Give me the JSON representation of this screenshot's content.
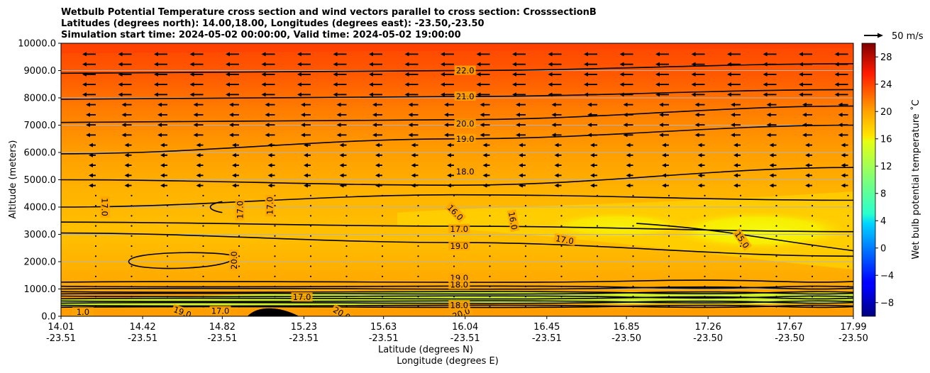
{
  "chart_data": {
    "type": "contour",
    "title_lines": [
      "Wetbulb Potential Temperature cross section and wind vectors parallel to cross section: CrosssectionB",
      "Latitudes (degrees north): 14.00,18.00, Longitudes (degrees east): -23.50,-23.50",
      "Simulation start time: 2024-05-02 00:00:00, Valid time: 2024-05-02 19:00:00"
    ],
    "xlabel": "Latitude (degrees N)",
    "xlabel2": "Longitude (degrees E)",
    "ylabel": "Altitude (meters)",
    "ylim": [
      0,
      10000
    ],
    "y_ticks": [
      "0.0",
      "1000.0",
      "2000.0",
      "3000.0",
      "4000.0",
      "5000.0",
      "6000.0",
      "7000.0",
      "8000.0",
      "9000.0",
      "10000.0"
    ],
    "x_ticks": [
      {
        "lat": "14.01",
        "lon": "-23.51"
      },
      {
        "lat": "14.42",
        "lon": "-23.51"
      },
      {
        "lat": "14.82",
        "lon": "-23.51"
      },
      {
        "lat": "15.23",
        "lon": "-23.51"
      },
      {
        "lat": "15.63",
        "lon": "-23.51"
      },
      {
        "lat": "16.04",
        "lon": "-23.51"
      },
      {
        "lat": "16.45",
        "lon": "-23.51"
      },
      {
        "lat": "16.85",
        "lon": "-23.50"
      },
      {
        "lat": "17.26",
        "lon": "-23.50"
      },
      {
        "lat": "17.67",
        "lon": "-23.50"
      },
      {
        "lat": "17.99",
        "lon": "-23.50"
      }
    ],
    "colorbar": {
      "label": "Wet bulb potential temperature ˚C",
      "range": [
        -10,
        30
      ],
      "ticks": [
        "-8",
        "-4",
        "0",
        "4",
        "8",
        "12",
        "16",
        "20",
        "24",
        "28"
      ],
      "colormap": "jet"
    },
    "quiver_key": {
      "label": "50 m/s",
      "value": 50
    },
    "contours": [
      {
        "level": 22.0,
        "altitudes": [
          8900,
          9000,
          9250
        ]
      },
      {
        "level": 21.0,
        "altitudes": [
          7950,
          8050,
          8300
        ]
      },
      {
        "level": 20.0,
        "altitudes": [
          7100,
          7200,
          7700
        ]
      },
      {
        "level": 19.0,
        "altitudes": [
          5950,
          6500,
          7000
        ]
      },
      {
        "level": 18.0,
        "altitudes": [
          5000,
          4800,
          5450
        ]
      },
      {
        "level": 17.0,
        "altitudes": [
          3450,
          3300,
          3100
        ]
      },
      {
        "level": 19.0,
        "altitudes": [
          3050,
          2700,
          2200
        ]
      },
      {
        "level": 16.0,
        "altitudes": [
          4000,
          4450,
          4250
        ]
      },
      {
        "level": 15.0,
        "altitudes": [
          null,
          3400,
          2400
        ]
      }
    ],
    "contour_labels": [
      {
        "text": "22.0",
        "lat": 16.04,
        "alt": 9000,
        "rot": 0
      },
      {
        "text": "21.0",
        "lat": 16.04,
        "alt": 8050,
        "rot": 0
      },
      {
        "text": "20.0",
        "lat": 16.04,
        "alt": 7050,
        "rot": 0
      },
      {
        "text": "19.0",
        "lat": 16.04,
        "alt": 6500,
        "rot": 0
      },
      {
        "text": "18.0",
        "lat": 16.04,
        "alt": 5300,
        "rot": 0
      },
      {
        "text": "17.0",
        "lat": 14.23,
        "alt": 4000,
        "rot": 90
      },
      {
        "text": "17.0",
        "lat": 14.91,
        "alt": 3900,
        "rot": -90
      },
      {
        "text": "17.0",
        "lat": 15.06,
        "alt": 4050,
        "rot": -90
      },
      {
        "text": "16.0",
        "lat": 15.99,
        "alt": 3800,
        "rot": 45
      },
      {
        "text": "16.0",
        "lat": 16.28,
        "alt": 3500,
        "rot": 80
      },
      {
        "text": "17.0",
        "lat": 16.01,
        "alt": 3200,
        "rot": 0
      },
      {
        "text": "17.0",
        "lat": 16.54,
        "alt": 2800,
        "rot": 10
      },
      {
        "text": "15.0",
        "lat": 17.43,
        "alt": 2800,
        "rot": 55
      },
      {
        "text": "19.0",
        "lat": 16.01,
        "alt": 2570,
        "rot": 0
      },
      {
        "text": "20.0",
        "lat": 14.88,
        "alt": 2050,
        "rot": -90
      },
      {
        "text": "19.0",
        "lat": 16.01,
        "alt": 1400,
        "rot": 0
      },
      {
        "text": "18.0",
        "lat": 16.01,
        "alt": 1150,
        "rot": 0
      },
      {
        "text": "17.0",
        "lat": 15.22,
        "alt": 700,
        "rot": 0
      },
      {
        "text": "17.0",
        "lat": 14.81,
        "alt": 200,
        "rot": 0
      },
      {
        "text": "19.0",
        "lat": 14.62,
        "alt": 150,
        "rot": 20
      },
      {
        "text": "20.0",
        "lat": 15.42,
        "alt": 100,
        "rot": 30
      },
      {
        "text": "20.0",
        "lat": 16.02,
        "alt": 100,
        "rot": -20
      },
      {
        "text": "18.0",
        "lat": 16.01,
        "alt": 400,
        "rot": 0
      },
      {
        "text": "1.0",
        "lat": 14.12,
        "alt": 150,
        "rot": 0
      }
    ]
  }
}
